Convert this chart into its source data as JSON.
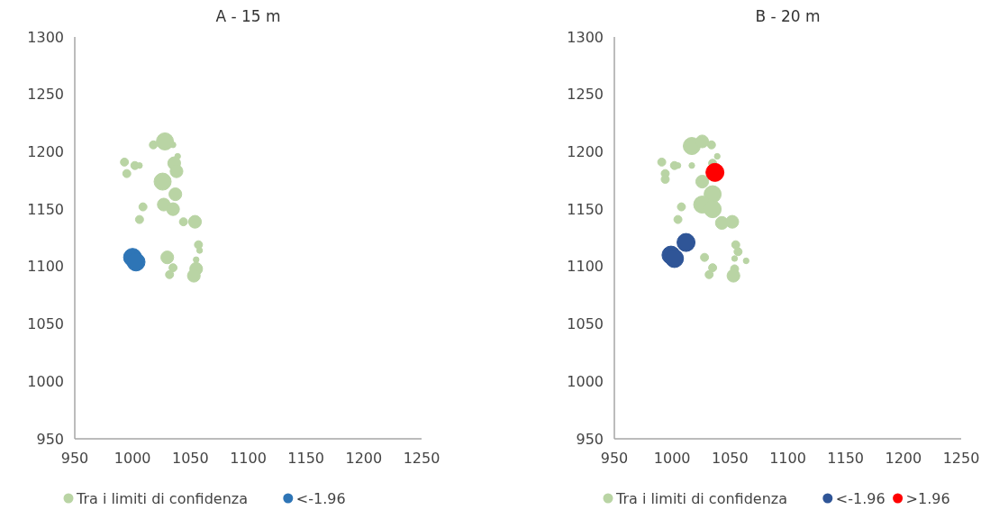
{
  "chart_data": [
    {
      "type": "bubble",
      "title": "A - 15 m",
      "xlim": [
        950,
        1250
      ],
      "xticks": [
        950,
        1000,
        1050,
        1100,
        1150,
        1200,
        1250
      ],
      "ylim": [
        950,
        1300
      ],
      "yticks": [
        950,
        1000,
        1050,
        1100,
        1150,
        1200,
        1250,
        1300
      ],
      "grid": false,
      "legend": "bottom",
      "series": [
        {
          "name": "Tra i limiti di confidenza",
          "color": "#b9d4a4",
          "x": [
            1028,
            1018,
            1035,
            1039,
            993,
            1002,
            1006,
            1036,
            995,
            1038,
            1026,
            1037,
            1009,
            1027,
            1035,
            1006,
            1044,
            1054,
            1057,
            1058,
            1030,
            1055,
            1035,
            1032,
            1055,
            1053
          ],
          "values": [
            1209,
            1206,
            1206,
            1196,
            1191,
            1188,
            1188,
            1190,
            1181,
            1183,
            1174,
            1163,
            1152,
            1154,
            1150,
            1141,
            1139,
            1139,
            1119,
            1114,
            1108,
            1106,
            1099,
            1093,
            1098,
            1092
          ],
          "sizes": [
            0.9,
            0.2,
            0.1,
            0.1,
            0.2,
            0.2,
            0.1,
            0.5,
            0.2,
            0.5,
            0.9,
            0.5,
            0.2,
            0.5,
            0.5,
            0.2,
            0.2,
            0.5,
            0.2,
            0.1,
            0.5,
            0.1,
            0.2,
            0.2,
            0.5,
            0.5
          ]
        },
        {
          "name": "<-1.96",
          "color": "#2e75b6",
          "x": [
            1000,
            1003
          ],
          "values": [
            1108,
            1104
          ],
          "sizes": [
            1,
            1
          ]
        }
      ]
    },
    {
      "type": "bubble",
      "title": "B - 20 m",
      "xlim": [
        950,
        1250
      ],
      "xticks": [
        950,
        1000,
        1050,
        1100,
        1150,
        1200,
        1250
      ],
      "ylim": [
        950,
        1300
      ],
      "yticks": [
        950,
        1000,
        1050,
        1100,
        1150,
        1200,
        1250,
        1300
      ],
      "grid": false,
      "legend": "bottom",
      "series": [
        {
          "name": "Tra i limiti di confidenza",
          "color": "#b9d4a4",
          "x": [
            1017,
            1026,
            1034,
            1039,
            991,
            1002,
            1005,
            1017,
            1035,
            994,
            994,
            1026,
            1035,
            1008,
            1026,
            1035,
            1005,
            1043,
            1052,
            1055,
            1057,
            1064,
            1054,
            1028,
            1035,
            1032,
            1054,
            1053
          ],
          "values": [
            1205,
            1209,
            1206,
            1196,
            1191,
            1188,
            1188,
            1188,
            1190,
            1181,
            1176,
            1174,
            1163,
            1152,
            1154,
            1150,
            1141,
            1138,
            1139,
            1119,
            1113,
            1105,
            1107,
            1108,
            1099,
            1093,
            1098,
            1092
          ],
          "sizes": [
            0.9,
            0.5,
            0.2,
            0.1,
            0.2,
            0.2,
            0.1,
            0.1,
            0.2,
            0.2,
            0.2,
            0.5,
            0.9,
            0.2,
            0.9,
            0.9,
            0.2,
            0.5,
            0.5,
            0.2,
            0.2,
            0.1,
            0.1,
            0.2,
            0.2,
            0.2,
            0.2,
            0.5
          ]
        },
        {
          "name": "<-1.96",
          "color": "#2f5597",
          "x": [
            1012,
            999,
            1002
          ],
          "values": [
            1121,
            1110,
            1107
          ],
          "sizes": [
            1,
            1,
            1
          ]
        },
        {
          "name": ">1.96",
          "color": "#ff0000",
          "x": [
            1037
          ],
          "values": [
            1182
          ],
          "sizes": [
            1
          ]
        }
      ]
    }
  ]
}
